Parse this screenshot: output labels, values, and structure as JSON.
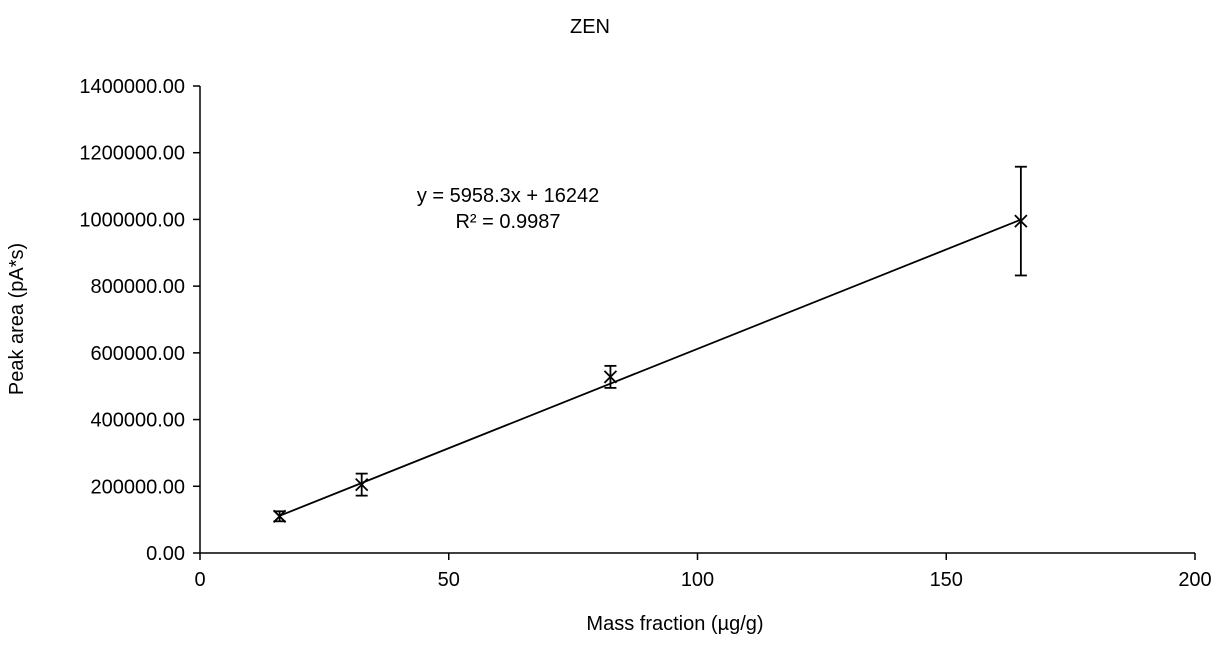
{
  "chart_data": {
    "type": "scatter",
    "title": "ZEN",
    "xlabel": "Mass fraction (µg/g)",
    "ylabel": "Peak area (pA*s)",
    "xlim": [
      0,
      200
    ],
    "ylim": [
      0,
      1400000
    ],
    "x_ticks": [
      0,
      50,
      100,
      150,
      200
    ],
    "x_tick_labels": [
      "0",
      "50",
      "100",
      "150",
      "200"
    ],
    "y_ticks": [
      0,
      200000,
      400000,
      600000,
      800000,
      1000000,
      1200000,
      1400000
    ],
    "y_tick_labels": [
      "0.00",
      "200000.00",
      "400000.00",
      "600000.00",
      "800000.00",
      "1000000.00",
      "1200000.00",
      "1400000.00"
    ],
    "grid": false,
    "legend": "none",
    "series": [
      {
        "marker": "x",
        "color": "#000000",
        "points": [
          {
            "x": 16.0,
            "y": 110000,
            "error": 15000
          },
          {
            "x": 32.5,
            "y": 205000,
            "error": 33000
          },
          {
            "x": 82.5,
            "y": 528000,
            "error": 33000
          },
          {
            "x": 165.0,
            "y": 995000,
            "error": 163000
          }
        ]
      }
    ],
    "trendline": {
      "type": "linear",
      "slope": 5958.3,
      "intercept": 16242,
      "x_range": [
        16.0,
        165.0
      ],
      "equation_label": "y = 5958.3x + 16242",
      "r2_label": "R² = 0.9987"
    }
  }
}
